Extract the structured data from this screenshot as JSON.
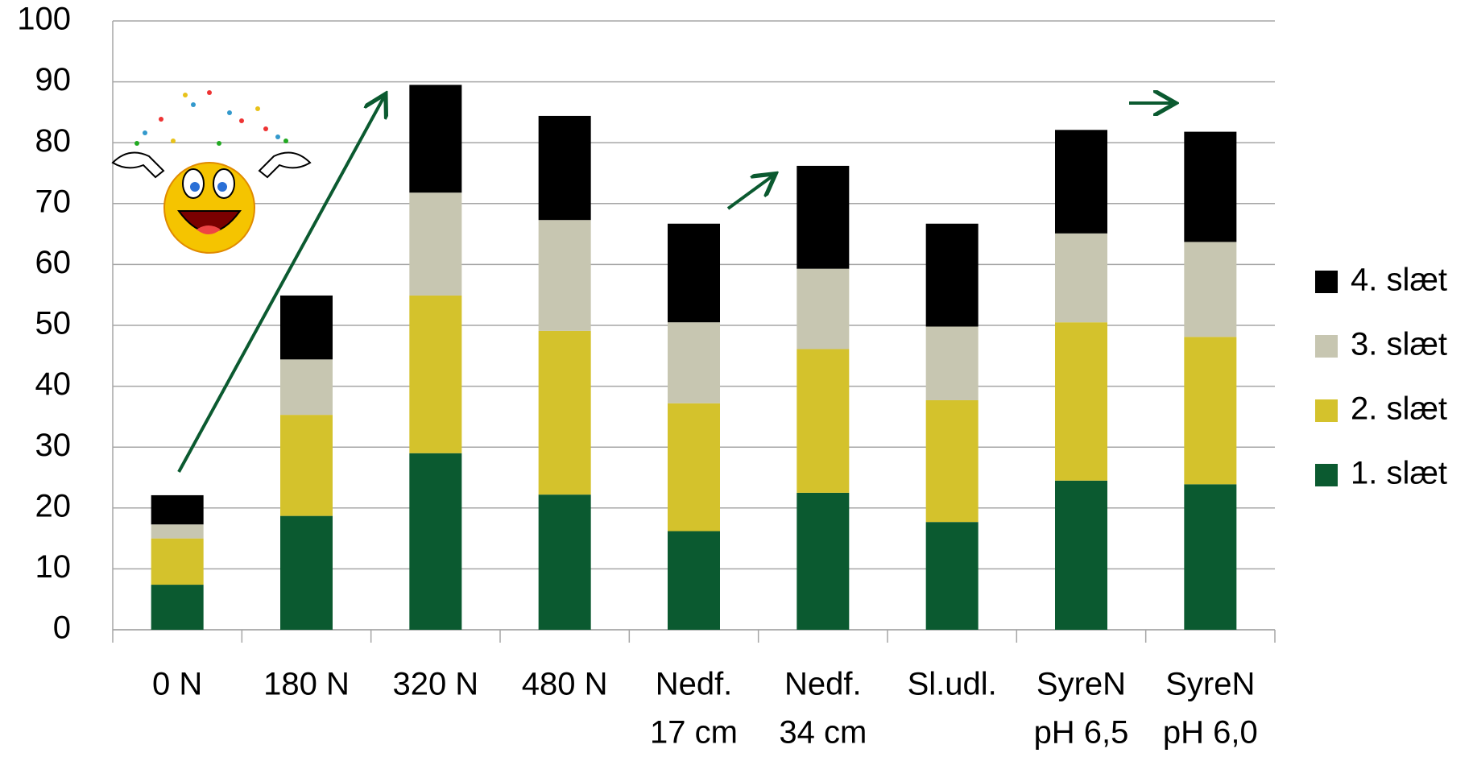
{
  "chart_data": {
    "type": "stacked-bar",
    "categories": [
      [
        "0 N"
      ],
      [
        "180 N"
      ],
      [
        "320 N"
      ],
      [
        "480 N"
      ],
      [
        "Nedf.",
        "17 cm"
      ],
      [
        "Nedf.",
        "34 cm"
      ],
      [
        "Sl.udl."
      ],
      [
        "SyreN",
        "pH 6,5"
      ],
      [
        "SyreN",
        "pH 6,0"
      ]
    ],
    "series": [
      {
        "name": "1. slæt",
        "color": "#0b5a30",
        "values": [
          7.4,
          18.7,
          29.0,
          22.2,
          16.2,
          22.5,
          17.7,
          24.5,
          23.9
        ]
      },
      {
        "name": "2. slæt",
        "color": "#d4c22c",
        "values": [
          7.6,
          16.6,
          25.9,
          26.9,
          21.0,
          23.6,
          20.0,
          26.0,
          24.2
        ]
      },
      {
        "name": "3. slæt",
        "color": "#c7c6b1",
        "values": [
          2.3,
          9.1,
          16.9,
          18.2,
          13.3,
          13.2,
          12.1,
          14.6,
          15.6
        ]
      },
      {
        "name": "4. slæt",
        "color": "#000000",
        "values": [
          4.8,
          10.5,
          17.7,
          17.1,
          16.2,
          16.9,
          16.9,
          17.0,
          18.1
        ]
      }
    ],
    "ylim": [
      0,
      100
    ],
    "yticks": [
      0,
      10,
      20,
      30,
      40,
      50,
      60,
      70,
      80,
      90,
      100
    ],
    "grid": true,
    "legend": "right"
  }
}
